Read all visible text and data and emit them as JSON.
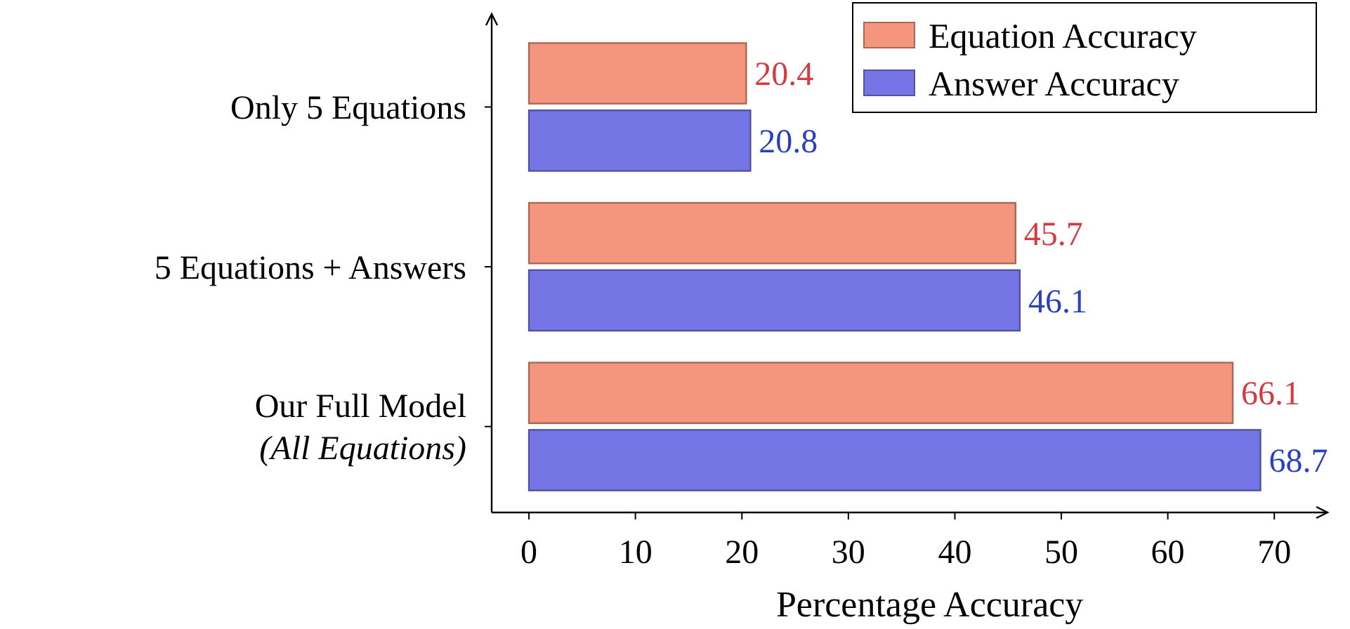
{
  "chart_data": {
    "type": "bar",
    "orientation": "horizontal",
    "xlabel": "Percentage Accuracy",
    "categories": [
      "Only 5 Equations",
      "5 Equations + Answers",
      "Our Full Model\n(All Equations)"
    ],
    "series": [
      {
        "name": "Equation Accuracy",
        "color": "#f4957e",
        "values": [
          20.4,
          45.7,
          66.1
        ]
      },
      {
        "name": "Answer Accuracy",
        "color": "#7575e6",
        "values": [
          20.8,
          46.1,
          68.7
        ]
      }
    ],
    "xlim": [
      -3.5,
      75
    ],
    "xticks": [
      0,
      10,
      20,
      30,
      40,
      50,
      60,
      70
    ],
    "data_labels": true,
    "legend": "top right",
    "grid": false
  }
}
